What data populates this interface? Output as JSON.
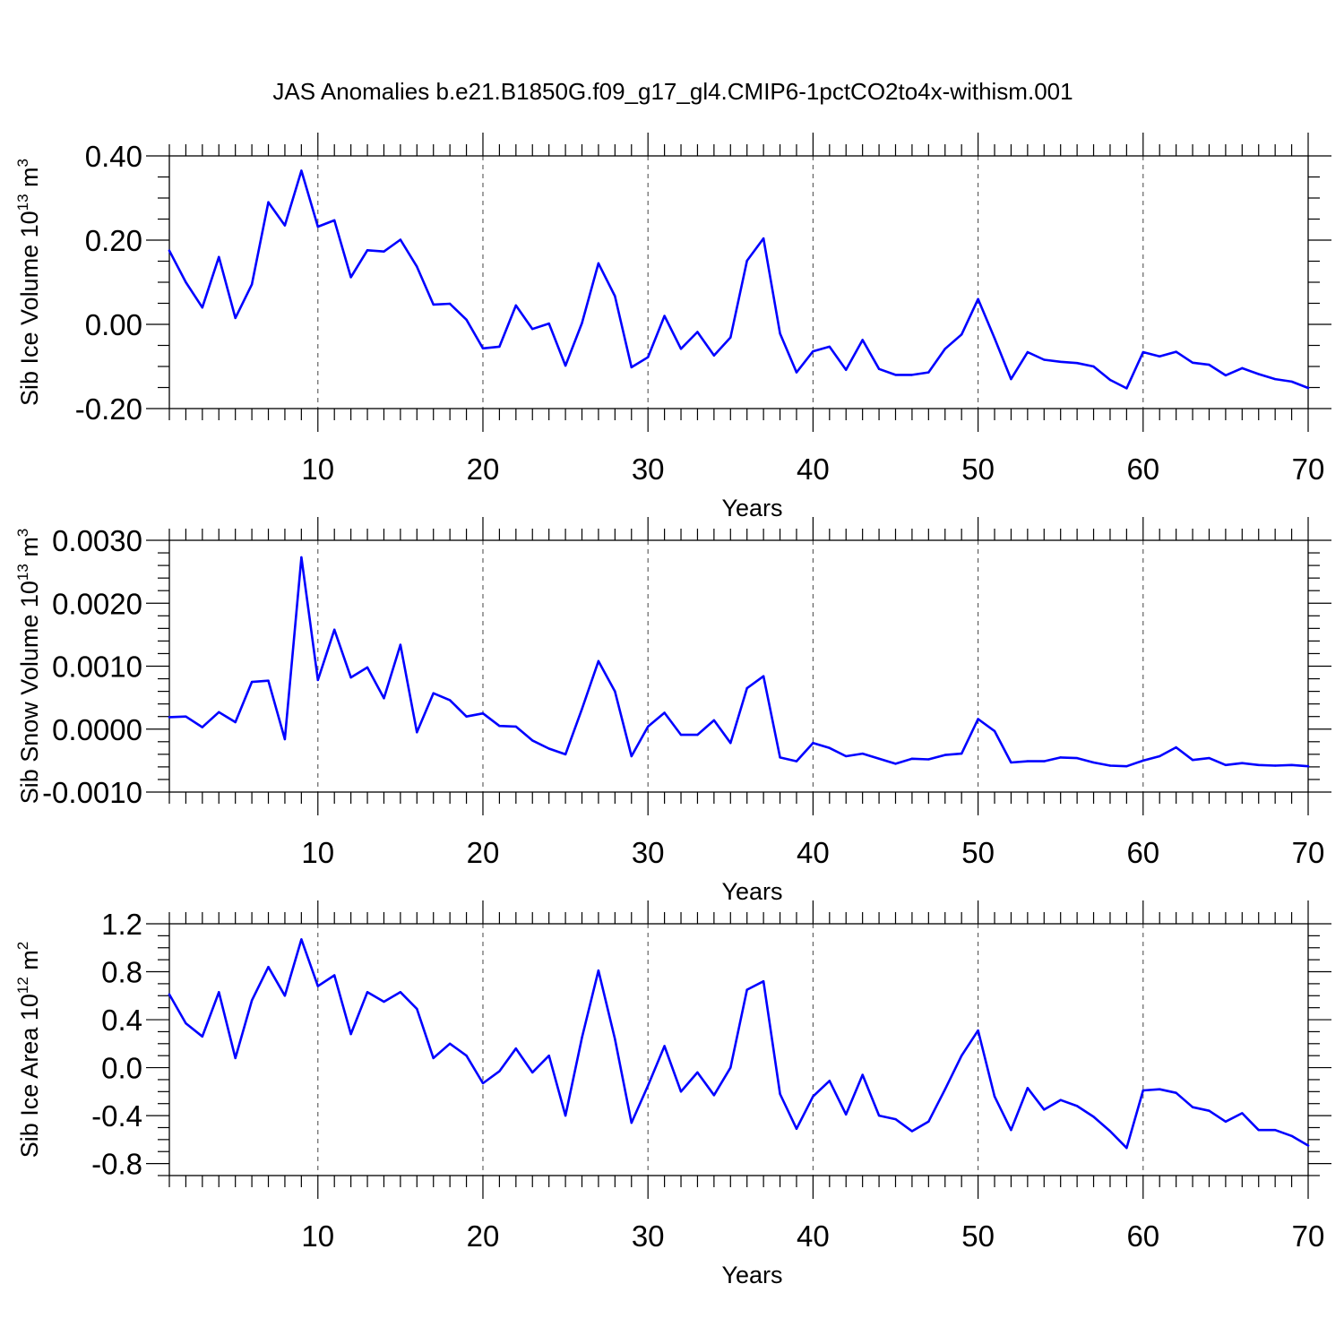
{
  "title": "JAS Anomalies b.e21.B1850G.f09_g17_gl4.CMIP6-1pctCO2to4x-withism.001",
  "colors": {
    "line": "#0000ff",
    "axis": "#000000",
    "grid": "#555555"
  },
  "chart_data": [
    {
      "type": "line",
      "ylabel": "Sib Ice Volume 10",
      "ylabel_exp": "13",
      "ylabel_unit": " m",
      "ylabel_unit_exp": "3",
      "xlabel": "Years",
      "xlim": [
        1,
        70
      ],
      "ylim": [
        -0.2,
        0.4
      ],
      "x_major_ticks": [
        10,
        20,
        30,
        40,
        50,
        60,
        70
      ],
      "x_tick_labels": [
        "10",
        "20",
        "30",
        "40",
        "50",
        "60",
        "70"
      ],
      "y_major_ticks": [
        -0.2,
        0.0,
        0.2,
        0.4
      ],
      "y_tick_labels": [
        "-0.20",
        "0.00",
        "0.20",
        "0.40"
      ],
      "y_minor_step": 0.05,
      "grid_x": true,
      "series": [
        {
          "x": [
            1,
            2,
            3,
            4,
            5,
            6,
            7,
            8,
            9,
            10,
            11,
            12,
            13,
            14,
            15,
            16,
            17,
            18,
            19,
            20,
            21,
            22,
            23,
            24,
            25,
            26,
            27,
            28,
            29,
            30,
            31,
            32,
            33,
            34,
            35,
            36,
            37,
            38,
            39,
            40,
            41,
            42,
            43,
            44,
            45,
            46,
            47,
            48,
            49,
            50,
            51,
            52,
            53,
            54,
            55,
            56,
            57,
            58,
            59,
            60,
            61,
            62,
            63,
            64,
            65,
            66,
            67,
            68,
            69,
            70
          ],
          "y": [
            0.175,
            0.1,
            0.04,
            0.16,
            0.015,
            0.095,
            0.29,
            0.235,
            0.365,
            0.232,
            0.247,
            0.112,
            0.176,
            0.173,
            0.201,
            0.137,
            0.047,
            0.049,
            0.011,
            -0.057,
            -0.053,
            0.045,
            -0.011,
            0.002,
            -0.098,
            0.003,
            0.145,
            0.067,
            -0.102,
            -0.078,
            0.02,
            -0.058,
            -0.018,
            -0.074,
            -0.031,
            0.151,
            0.204,
            -0.022,
            -0.114,
            -0.064,
            -0.053,
            -0.108,
            -0.037,
            -0.106,
            -0.12,
            -0.12,
            -0.114,
            -0.058,
            -0.024,
            0.06,
            -0.033,
            -0.13,
            -0.066,
            -0.084,
            -0.089,
            -0.092,
            -0.1,
            -0.132,
            -0.152,
            -0.066,
            -0.076,
            -0.065,
            -0.091,
            -0.096,
            -0.121,
            -0.104,
            -0.118,
            -0.13,
            -0.136,
            -0.151
          ]
        }
      ]
    },
    {
      "type": "line",
      "ylabel": "Sib Snow Volume 10",
      "ylabel_exp": "13",
      "ylabel_unit": " m",
      "ylabel_unit_exp": "3",
      "xlabel": "Years",
      "xlim": [
        1,
        70
      ],
      "ylim": [
        -0.001,
        0.003
      ],
      "x_major_ticks": [
        10,
        20,
        30,
        40,
        50,
        60,
        70
      ],
      "x_tick_labels": [
        "10",
        "20",
        "30",
        "40",
        "50",
        "60",
        "70"
      ],
      "y_major_ticks": [
        -0.001,
        0.0,
        0.001,
        0.002,
        0.003
      ],
      "y_tick_labels": [
        "-0.0010",
        "0.0000",
        "0.0010",
        "0.0020",
        "0.0030"
      ],
      "y_minor_step": 0.0002,
      "grid_x": true,
      "series": [
        {
          "x": [
            1,
            2,
            3,
            4,
            5,
            6,
            7,
            8,
            9,
            10,
            11,
            12,
            13,
            14,
            15,
            16,
            17,
            18,
            19,
            20,
            21,
            22,
            23,
            24,
            25,
            26,
            27,
            28,
            29,
            30,
            31,
            32,
            33,
            34,
            35,
            36,
            37,
            38,
            39,
            40,
            41,
            42,
            43,
            44,
            45,
            46,
            47,
            48,
            49,
            50,
            51,
            52,
            53,
            54,
            55,
            56,
            57,
            58,
            59,
            60,
            61,
            62,
            63,
            64,
            65,
            66,
            67,
            68,
            69,
            70
          ],
          "y": [
            0.00019,
            0.0002,
            3e-05,
            0.00027,
            0.00011,
            0.00075,
            0.00077,
            -0.00016,
            0.00273,
            0.00078,
            0.00158,
            0.00082,
            0.00098,
            0.00049,
            0.00134,
            -5e-05,
            0.00057,
            0.00046,
            0.0002,
            0.00025,
            5e-05,
            4e-05,
            -0.00018,
            -0.00031,
            -0.0004,
            0.00032,
            0.00108,
            0.0006,
            -0.00043,
            4e-05,
            0.00026,
            -9e-05,
            -9e-05,
            0.00014,
            -0.00022,
            0.00065,
            0.00084,
            -0.00045,
            -0.00051,
            -0.00022,
            -0.0003,
            -0.00043,
            -0.00039,
            -0.00047,
            -0.00055,
            -0.00047,
            -0.00048,
            -0.00041,
            -0.00039,
            0.00016,
            -3e-05,
            -0.00053,
            -0.00051,
            -0.00051,
            -0.00045,
            -0.00046,
            -0.00053,
            -0.00058,
            -0.00059,
            -0.0005,
            -0.00043,
            -0.00029,
            -0.00049,
            -0.00046,
            -0.00057,
            -0.00054,
            -0.00057,
            -0.00058,
            -0.00057,
            -0.00059
          ]
        }
      ]
    },
    {
      "type": "line",
      "ylabel": "Sib Ice Area 10",
      "ylabel_exp": "12",
      "ylabel_unit": " m",
      "ylabel_unit_exp": "2",
      "xlabel": "Years",
      "xlim": [
        1,
        70
      ],
      "ylim": [
        -0.9,
        1.2
      ],
      "x_major_ticks": [
        10,
        20,
        30,
        40,
        50,
        60,
        70
      ],
      "x_tick_labels": [
        "10",
        "20",
        "30",
        "40",
        "50",
        "60",
        "70"
      ],
      "y_major_ticks": [
        -0.8,
        -0.4,
        0.0,
        0.4,
        0.8,
        1.2
      ],
      "y_tick_labels": [
        "-0.8",
        "-0.4",
        "0.0",
        "0.4",
        "0.8",
        "1.2"
      ],
      "y_minor_step": 0.1,
      "grid_x": true,
      "series": [
        {
          "x": [
            1,
            2,
            3,
            4,
            5,
            6,
            7,
            8,
            9,
            10,
            11,
            12,
            13,
            14,
            15,
            16,
            17,
            18,
            19,
            20,
            21,
            22,
            23,
            24,
            25,
            26,
            27,
            28,
            29,
            30,
            31,
            32,
            33,
            34,
            35,
            36,
            37,
            38,
            39,
            40,
            41,
            42,
            43,
            44,
            45,
            46,
            47,
            48,
            49,
            50,
            51,
            52,
            53,
            54,
            55,
            56,
            57,
            58,
            59,
            60,
            61,
            62,
            63,
            64,
            65,
            66,
            67,
            68,
            69,
            70
          ],
          "y": [
            0.61,
            0.37,
            0.26,
            0.63,
            0.08,
            0.56,
            0.84,
            0.6,
            1.07,
            0.68,
            0.77,
            0.28,
            0.63,
            0.55,
            0.63,
            0.49,
            0.08,
            0.2,
            0.1,
            -0.13,
            -0.03,
            0.16,
            -0.04,
            0.1,
            -0.4,
            0.25,
            0.81,
            0.24,
            -0.46,
            -0.15,
            0.18,
            -0.2,
            -0.04,
            -0.23,
            0.0,
            0.65,
            0.72,
            -0.22,
            -0.51,
            -0.24,
            -0.11,
            -0.39,
            -0.06,
            -0.4,
            -0.43,
            -0.53,
            -0.45,
            -0.18,
            0.1,
            0.31,
            -0.24,
            -0.52,
            -0.17,
            -0.35,
            -0.27,
            -0.32,
            -0.41,
            -0.53,
            -0.67,
            -0.19,
            -0.18,
            -0.21,
            -0.33,
            -0.36,
            -0.45,
            -0.38,
            -0.52,
            -0.52,
            -0.57,
            -0.65
          ]
        }
      ]
    }
  ]
}
